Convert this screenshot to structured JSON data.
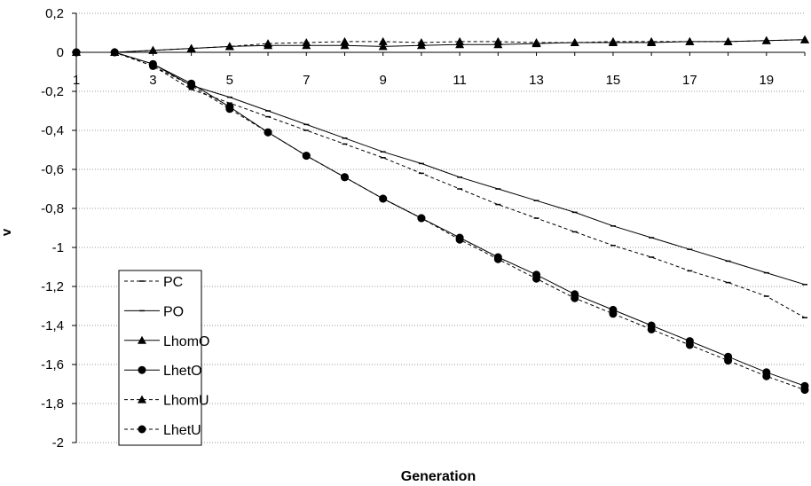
{
  "chart_data": {
    "type": "line",
    "title": "",
    "xlabel": "Generation",
    "ylabel": "v",
    "x": [
      1,
      2,
      3,
      4,
      5,
      6,
      7,
      8,
      9,
      10,
      11,
      12,
      13,
      14,
      15,
      16,
      17,
      18,
      19,
      20
    ],
    "xticks": [
      1,
      3,
      5,
      7,
      9,
      11,
      13,
      15,
      17,
      19
    ],
    "xlim": [
      1,
      20
    ],
    "ylim": [
      -2,
      0.2
    ],
    "yticks": [
      "0,2",
      "0",
      "-0,2",
      "-0,4",
      "-0,6",
      "-0,8",
      "-1",
      "-1,2",
      "-1,4",
      "-1,6",
      "-1,8",
      "-2"
    ],
    "ytick_values": [
      0.2,
      0,
      -0.2,
      -0.4,
      -0.6,
      -0.8,
      -1,
      -1.2,
      -1.4,
      -1.6,
      -1.8,
      -2
    ],
    "grid": "horizontal dotted",
    "legend_position": "bottom-left",
    "series": [
      {
        "name": "PC",
        "style": "dashed",
        "marker": "dash",
        "values": [
          0,
          0,
          -0.07,
          -0.19,
          -0.26,
          -0.33,
          -0.4,
          -0.47,
          -0.54,
          -0.62,
          -0.7,
          -0.78,
          -0.85,
          -0.92,
          -0.99,
          -1.05,
          -1.12,
          -1.18,
          -1.25,
          -1.36
        ]
      },
      {
        "name": "PO",
        "style": "solid",
        "marker": "dash",
        "values": [
          0,
          0,
          -0.06,
          -0.17,
          -0.23,
          -0.3,
          -0.37,
          -0.44,
          -0.51,
          -0.57,
          -0.64,
          -0.7,
          -0.76,
          -0.82,
          -0.89,
          -0.95,
          -1.01,
          -1.07,
          -1.13,
          -1.19
        ]
      },
      {
        "name": "LhomO",
        "style": "solid",
        "marker": "triangle",
        "values": [
          0,
          0,
          0.01,
          0.02,
          0.03,
          0.035,
          0.035,
          0.035,
          0.03,
          0.035,
          0.04,
          0.04,
          0.045,
          0.05,
          0.05,
          0.05,
          0.055,
          0.055,
          0.06,
          0.065
        ]
      },
      {
        "name": "LhetO",
        "style": "solid",
        "marker": "circle",
        "values": [
          0,
          0,
          -0.06,
          -0.16,
          -0.28,
          -0.41,
          -0.53,
          -0.64,
          -0.75,
          -0.85,
          -0.95,
          -1.05,
          -1.14,
          -1.24,
          -1.32,
          -1.4,
          -1.48,
          -1.56,
          -1.64,
          -1.71
        ]
      },
      {
        "name": "LhomU",
        "style": "dashed",
        "marker": "triangle",
        "values": [
          0,
          0,
          0.01,
          0.02,
          0.03,
          0.045,
          0.05,
          0.055,
          0.055,
          0.05,
          0.055,
          0.055,
          0.05,
          0.05,
          0.055,
          0.055,
          0.055,
          0.055,
          0.06,
          0.065
        ]
      },
      {
        "name": "LhetU",
        "style": "dashed",
        "marker": "circle",
        "values": [
          0,
          0,
          -0.07,
          -0.17,
          -0.29,
          -0.41,
          -0.53,
          -0.64,
          -0.75,
          -0.85,
          -0.96,
          -1.06,
          -1.16,
          -1.26,
          -1.34,
          -1.42,
          -1.5,
          -1.58,
          -1.66,
          -1.73
        ]
      }
    ]
  }
}
